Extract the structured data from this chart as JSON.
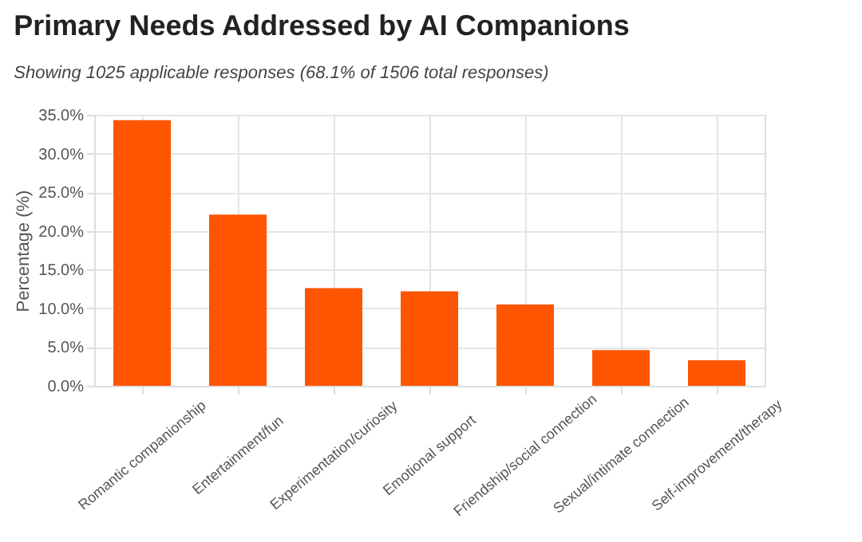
{
  "chart_data": {
    "type": "bar",
    "title": "Primary Needs Addressed by AI Companions",
    "subtitle": "Showing 1025 applicable responses (68.1% of 1506 total responses)",
    "ylabel": "Percentage (%)",
    "categories": [
      "Romantic companionship",
      "Entertainment/fun",
      "Experimentation/curiosity",
      "Emotional support",
      "Friendship/social connection",
      "Sexual/intimate connection",
      "Self-improvement/therapy"
    ],
    "values": [
      34.3,
      22.1,
      12.6,
      12.2,
      10.5,
      4.6,
      3.3
    ],
    "color": "#ff5500",
    "ylim": [
      0,
      35
    ],
    "yticks": [
      {
        "value": 0,
        "label": "0.0%"
      },
      {
        "value": 5,
        "label": "5.0%"
      },
      {
        "value": 10,
        "label": "10.0%"
      },
      {
        "value": 15,
        "label": "15.0%"
      },
      {
        "value": 20,
        "label": "20.0%"
      },
      {
        "value": 25,
        "label": "25.0%"
      },
      {
        "value": 30,
        "label": "30.0%"
      },
      {
        "value": 35,
        "label": "35.0%"
      }
    ],
    "grid": true
  }
}
